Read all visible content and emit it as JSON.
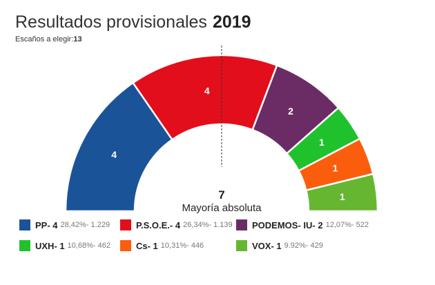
{
  "header": {
    "title": "Resultados provisionales",
    "year": "2019",
    "seats_label": "Escaños a elegir:",
    "seats_value": "13"
  },
  "center": {
    "majority_value": "7",
    "majority_label": "Mayoría absoluta"
  },
  "chart_data": {
    "type": "pie",
    "subtype": "parliament-hemicycle",
    "title": "Resultados provisionales 2019",
    "total_seats": 13,
    "majority": 7,
    "series": [
      {
        "name": "PP",
        "seats": 4,
        "percent": "28,42%",
        "votes": "1.229",
        "color": "#1b5399",
        "legend_label": "PP- 4",
        "legend_stats": "28,42%- 1.229"
      },
      {
        "name": "P.S.O.E.",
        "seats": 4,
        "percent": "26,34%",
        "votes": "1.139",
        "color": "#e30e1c",
        "legend_label": "P.S.O.E.- 4",
        "legend_stats": "26,34%- 1.139"
      },
      {
        "name": "PODEMOS- IU",
        "seats": 2,
        "percent": "12,07%",
        "votes": "522",
        "color": "#6b2c66",
        "legend_label": "PODEMOS- IU- 2",
        "legend_stats": "12,07%- 522"
      },
      {
        "name": "UXH",
        "seats": 1,
        "percent": "10,68%",
        "votes": "462",
        "color": "#1fc22c",
        "legend_label": "UXH- 1",
        "legend_stats": "10,68%- 462"
      },
      {
        "name": "Cs",
        "seats": 1,
        "percent": "10,31%",
        "votes": "446",
        "color": "#fa5e0d",
        "legend_label": "Cs- 1",
        "legend_stats": "10,31%- 446"
      },
      {
        "name": "VOX",
        "seats": 1,
        "percent": "9,92%",
        "votes": "429",
        "color": "#66b632",
        "legend_label": "VOX- 1",
        "legend_stats": "9.92%- 429"
      }
    ]
  }
}
